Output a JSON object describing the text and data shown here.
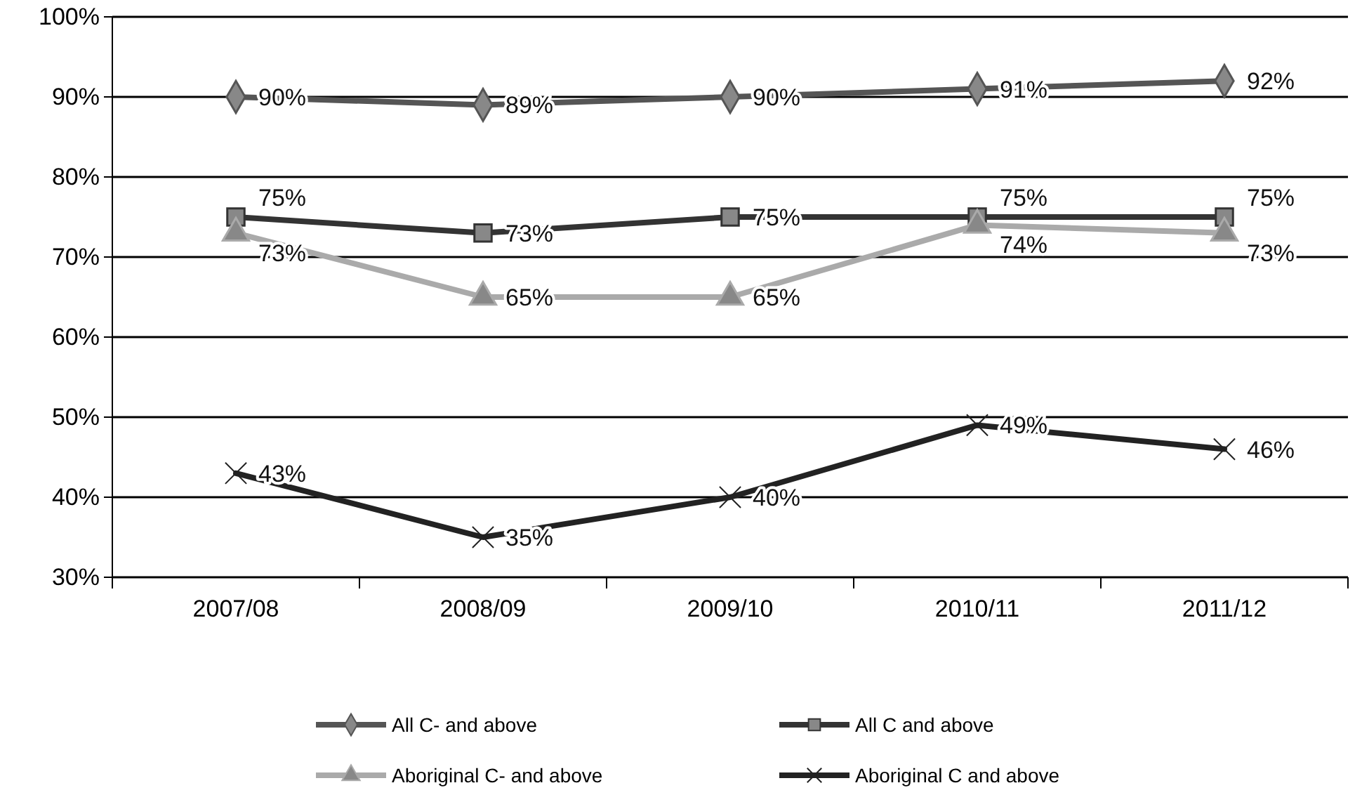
{
  "chart_data": {
    "type": "line",
    "categories": [
      "2007/08",
      "2008/09",
      "2009/10",
      "2010/11",
      "2011/12"
    ],
    "ylim": [
      30,
      100
    ],
    "yticks": [
      {
        "value": 30,
        "label": "30%"
      },
      {
        "value": 40,
        "label": "40%"
      },
      {
        "value": 50,
        "label": "50%"
      },
      {
        "value": 60,
        "label": "60%"
      },
      {
        "value": 70,
        "label": "70%"
      },
      {
        "value": 80,
        "label": "80%"
      },
      {
        "value": 90,
        "label": "90%"
      },
      {
        "value": 100,
        "label": "100%"
      }
    ],
    "grid": "y",
    "legend": "bottom",
    "series": [
      {
        "name": "All C- and above",
        "color": "#555555",
        "marker": "diamond",
        "values": [
          90,
          89,
          90,
          91,
          92
        ],
        "value_labels": [
          "90%",
          "89%",
          "90%",
          "91%",
          "92%"
        ]
      },
      {
        "name": "All C and above",
        "color": "#333333",
        "marker": "square",
        "values": [
          75,
          73,
          75,
          75,
          75
        ],
        "value_labels": [
          "75%",
          "73%",
          "75%",
          "75%",
          "75%"
        ]
      },
      {
        "name": "Aboriginal C- and above",
        "color": "#aaaaaa",
        "marker": "triangle",
        "values": [
          73,
          65,
          65,
          74,
          73
        ],
        "value_labels": [
          "73%",
          "65%",
          "65%",
          "74%",
          "73%"
        ]
      },
      {
        "name": "Aboriginal C and above",
        "color": "#222222",
        "marker": "cross",
        "values": [
          43,
          35,
          40,
          49,
          46
        ],
        "value_labels": [
          "43%",
          "35%",
          "40%",
          "49%",
          "46%"
        ]
      }
    ]
  }
}
